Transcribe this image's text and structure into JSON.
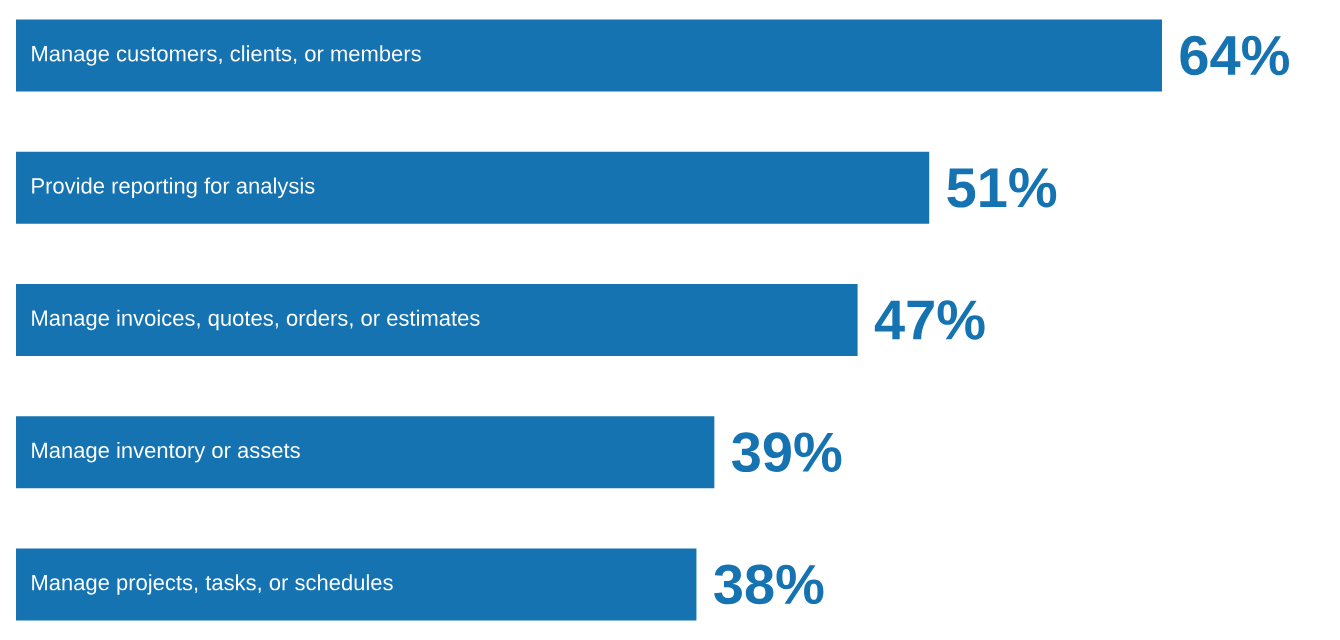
{
  "chart_data": {
    "type": "bar",
    "orientation": "horizontal",
    "categories": [
      "Manage customers, clients, or members",
      "Provide reporting for analysis",
      "Manage invoices, quotes, orders, or estimates",
      "Manage inventory or assets",
      "Manage projects, tasks, or schedules"
    ],
    "values": [
      64,
      51,
      47,
      39,
      38
    ],
    "value_labels": [
      "64%",
      "51%",
      "47%",
      "39%",
      "38%"
    ],
    "color": "#1673b1"
  }
}
